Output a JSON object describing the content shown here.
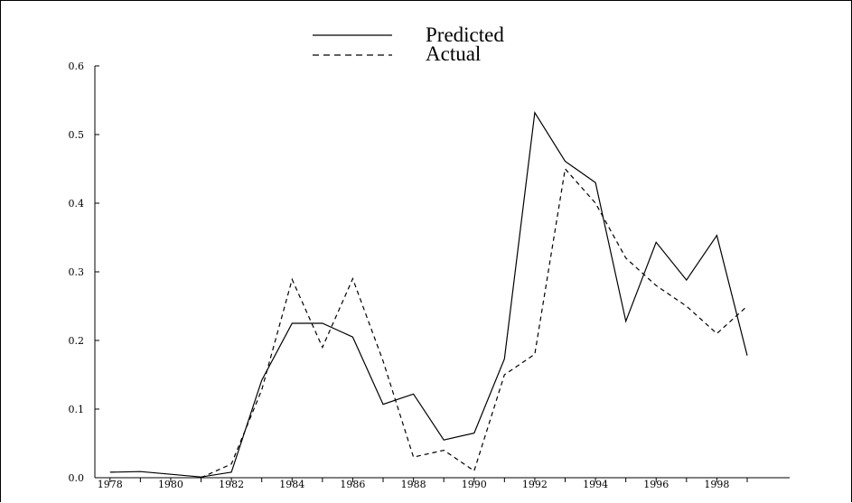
{
  "chart_data": {
    "type": "line",
    "title": "",
    "xlabel": "",
    "ylabel": "",
    "x": [
      1978,
      1979,
      1980,
      1981,
      1982,
      1983,
      1984,
      1985,
      1986,
      1987,
      1988,
      1989,
      1990,
      1991,
      1992,
      1993,
      1994,
      1995,
      1996,
      1997,
      1998,
      1999
    ],
    "x_ticks": [
      "1978",
      "1980",
      "1982",
      "1984",
      "1986",
      "1988",
      "1990",
      "1992",
      "1994",
      "1996",
      "1998"
    ],
    "y_ticks": [
      "0.0",
      "0.1",
      "0.2",
      "0.3",
      "0.4",
      "0.5",
      "0.6"
    ],
    "xlim": [
      1977.5,
      2000.4
    ],
    "ylim": [
      0,
      0.6
    ],
    "grid": false,
    "legend_position": "top-center",
    "series": [
      {
        "name": "Predicted",
        "style": "solid",
        "color": "#000000",
        "values": [
          0.008,
          0.009,
          0.005,
          0.001,
          0.008,
          0.142,
          0.225,
          0.225,
          0.205,
          0.107,
          0.122,
          0.055,
          0.065,
          0.173,
          0.532,
          0.461,
          0.43,
          0.228,
          0.343,
          0.288,
          0.353,
          0.178
        ]
      },
      {
        "name": "Actual",
        "style": "dashed",
        "color": "#000000",
        "values": [
          null,
          null,
          null,
          0.0,
          0.02,
          0.128,
          0.289,
          0.19,
          0.29,
          0.17,
          0.03,
          0.04,
          0.01,
          0.15,
          0.18,
          0.45,
          0.4,
          0.32,
          0.28,
          0.25,
          0.21,
          0.25
        ]
      }
    ]
  }
}
